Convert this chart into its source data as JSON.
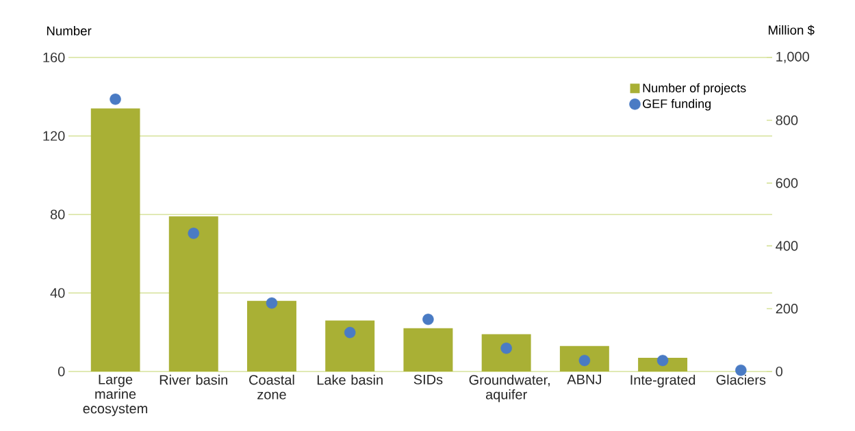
{
  "chart_data": {
    "type": "bar",
    "ylabel": "Number",
    "y2label": "Million $",
    "categories": [
      "Large marine ecosystem",
      "River basin",
      "Coastal zone",
      "Lake basin",
      "SIDs",
      "Groundwater, aquifer",
      "ABNJ",
      "Inte-grated",
      "Glaciers"
    ],
    "series": [
      {
        "name": "Number of projects",
        "type": "bar",
        "color": "#a9b035",
        "values": [
          134,
          79,
          36,
          26,
          22,
          19,
          13,
          7,
          0
        ]
      },
      {
        "name": "GEF funding",
        "type": "scatter",
        "axis": "y2",
        "marker": "circle",
        "color": "#4a7bc4",
        "values": [
          867,
          440,
          218,
          124,
          166,
          74,
          35,
          35,
          4
        ]
      }
    ],
    "ylim": [
      0,
      160
    ],
    "yticks": [
      0,
      40,
      80,
      120,
      160
    ],
    "y2lim": [
      0,
      1000
    ],
    "y2ticks": [
      0,
      200,
      400,
      600,
      800,
      {
        "value": 1000,
        "label": "1,000"
      }
    ],
    "grid": "y",
    "legend": "top right"
  }
}
